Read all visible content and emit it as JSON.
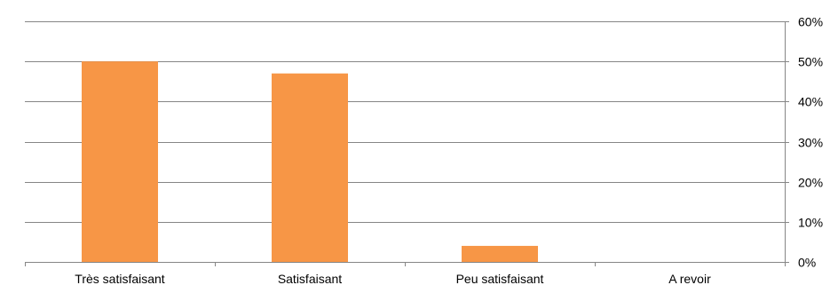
{
  "chart_data": {
    "type": "bar",
    "title": "",
    "xlabel": "",
    "ylabel": "",
    "categories": [
      "Très satisfaisant",
      "Satisfaisant",
      "Peu satisfaisant",
      "A revoir"
    ],
    "values": [
      50,
      47,
      4,
      0
    ],
    "value_unit": "%",
    "ylim": [
      0,
      60
    ],
    "y_ticks": [
      0,
      10,
      20,
      30,
      40,
      50,
      60
    ],
    "y_tick_labels": [
      "0%",
      "10%",
      "20%",
      "30%",
      "40%",
      "50%",
      "60%"
    ],
    "y_axis_side": "right",
    "grid": true,
    "legend": "none",
    "bar_color": "#F79646",
    "gridline_color": "#868686"
  }
}
